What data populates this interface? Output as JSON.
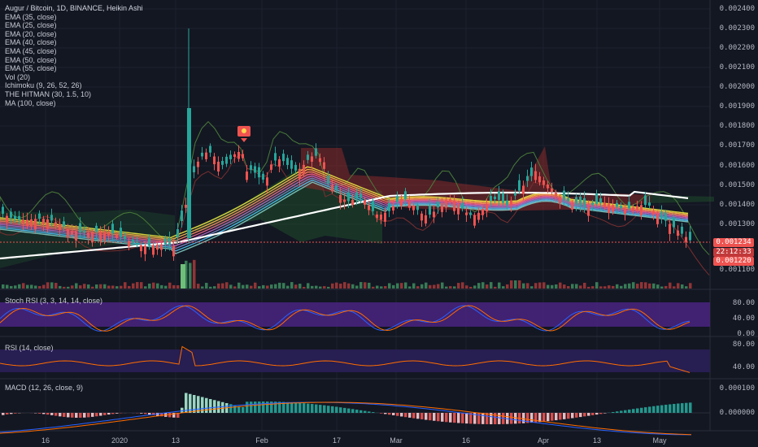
{
  "header": {
    "title": "Augur / Bitcoin, 1D, BINANCE, Heikin Ashi"
  },
  "indicators": [
    "EMA (35, close)",
    "EMA (25, close)",
    "EMA (20, close)",
    "EMA (40, close)",
    "EMA (45, close)",
    "EMA (50, close)",
    "EMA (55, close)",
    "Vol (20)",
    "Ichimoku (9, 26, 52, 26)",
    "THE HITMAN (30, 1.5, 10)",
    "MA (100, close)"
  ],
  "price_axis": [
    "0.002400",
    "0.002300",
    "0.002200",
    "0.002100",
    "0.002000",
    "0.001900",
    "0.001800",
    "0.001700",
    "0.001600",
    "0.001500",
    "0.001400",
    "0.001300",
    "0.001100"
  ],
  "price_tags": {
    "last_price": "0.001234",
    "countdown": "22:12:33",
    "low_price": "0.001220"
  },
  "stoch_rsi": {
    "title": "Stoch RSI (3, 3, 14, 14, close)",
    "axis": [
      "80.00",
      "40.00",
      "0.00"
    ]
  },
  "rsi": {
    "title": "RSI (14, close)",
    "axis": [
      "80.00",
      "40.00"
    ]
  },
  "macd": {
    "title": "MACD (12, 26, close, 9)",
    "axis": [
      "0.000100",
      "0.000000"
    ]
  },
  "time_axis": [
    "16",
    "2020",
    "13",
    "Feb",
    "17",
    "Mar",
    "16",
    "Apr",
    "13",
    "May"
  ],
  "colors": {
    "background": "#131722",
    "up_candle": "#26a69a",
    "down_candle": "#ef5350",
    "ma100": "#ffffff",
    "rsi_band": "#2a1f57",
    "stoch_band": "#4a2380",
    "cloud_red": "#8b2a2a",
    "cloud_green": "#1f4d2c",
    "last_price_tag": "#ef5350"
  }
}
